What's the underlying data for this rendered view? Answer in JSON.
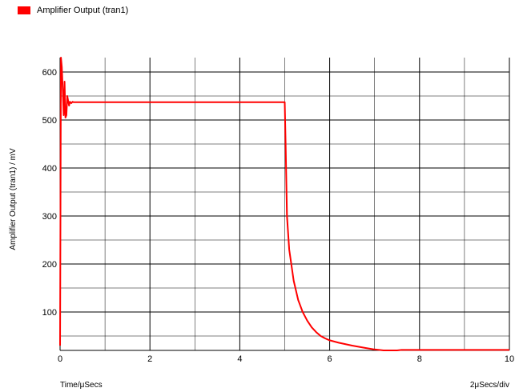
{
  "chart_data": {
    "type": "line",
    "legend": "Amplifier Output (tran1)",
    "xlabel": "Time/μSecs",
    "x_scale_label": "2μSecs/div",
    "ylabel": "Amplifier Output (tran1) / mV",
    "xlim": [
      0,
      10
    ],
    "ylim": [
      20,
      630
    ],
    "x_ticks": [
      "0",
      "2",
      "4",
      "6",
      "8",
      "10"
    ],
    "y_ticks": [
      "100",
      "200",
      "300",
      "400",
      "500",
      "600"
    ],
    "grid": true,
    "legend_position": "top-left",
    "colors": {
      "series": "#ff0000"
    },
    "series": [
      {
        "name": "Amplifier Output (tran1)",
        "x": [
          0,
          0.02,
          0.04,
          0.06,
          0.08,
          0.1,
          0.12,
          0.14,
          0.16,
          0.18,
          0.2,
          0.22,
          0.25,
          0.28,
          0.3,
          0.4,
          1.0,
          2.0,
          3.0,
          4.0,
          4.9,
          5.0,
          5.02,
          5.05,
          5.1,
          5.2,
          5.3,
          5.4,
          5.5,
          5.6,
          5.7,
          5.8,
          5.9,
          6.0,
          6.2,
          6.5,
          6.8,
          7.0,
          7.2,
          7.5,
          7.6,
          8.0,
          9.0,
          10.0
        ],
        "y": [
          30,
          630,
          610,
          560,
          510,
          580,
          505,
          510,
          550,
          540,
          530,
          538,
          535,
          538,
          537,
          537,
          537,
          537,
          537,
          537,
          537,
          537,
          450,
          300,
          230,
          165,
          125,
          100,
          82,
          68,
          58,
          50,
          45,
          41,
          36,
          30,
          25,
          22,
          20,
          20,
          21,
          21,
          21,
          21
        ]
      }
    ]
  }
}
